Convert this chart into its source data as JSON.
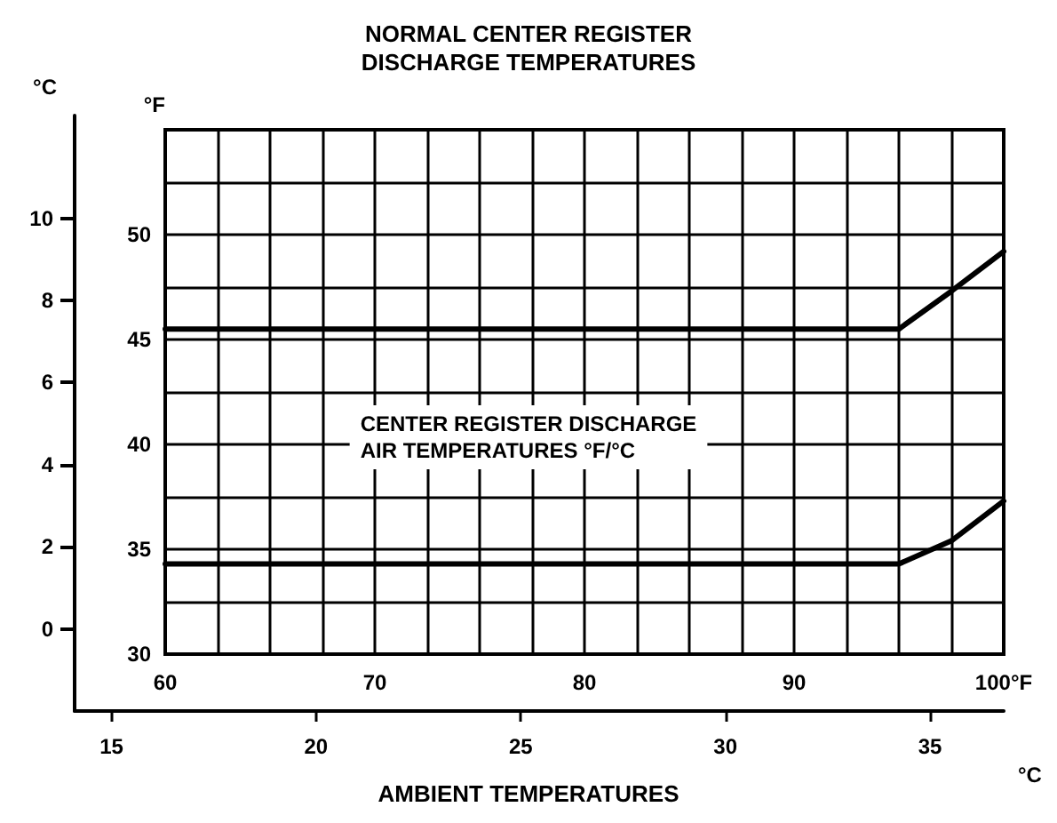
{
  "chart_data": {
    "type": "line",
    "title": "NORMAL CENTER REGISTER\nDISCHARGE TEMPERATURES",
    "xlabel": "AMBIENT TEMPERATURES",
    "ylabel": "°F",
    "y2label": "°C",
    "x2label": "°C",
    "annotations": [
      "CENTER REGISTER DISCHARGE\nAIR TEMPERATURES °F/°C"
    ],
    "x": [
      60,
      95,
      97.5,
      100
    ],
    "series": [
      {
        "color": "#000000",
        "values": [
          45.5,
          45.5,
          47.3,
          49.2
        ]
      },
      {
        "color": "#000000",
        "values": [
          34.3,
          34.3,
          35.4,
          37.3
        ]
      }
    ],
    "xlim": [
      60,
      100
    ],
    "xticks": [
      60,
      {
        "value": 62.5,
        "label": null
      },
      {
        "value": 65,
        "label": null
      },
      {
        "value": 67.5,
        "label": null
      },
      70,
      {
        "value": 72.5,
        "label": null
      },
      {
        "value": 75,
        "label": null
      },
      {
        "value": 77.5,
        "label": null
      },
      80,
      {
        "value": 82.5,
        "label": null
      },
      {
        "value": 85,
        "label": null
      },
      {
        "value": 87.5,
        "label": null
      },
      90,
      {
        "value": 92.5,
        "label": null
      },
      {
        "value": 95,
        "label": null
      },
      {
        "value": 97.5,
        "label": null
      },
      {
        "value": 100,
        "label": "100°F"
      }
    ],
    "ylim": [
      30,
      55
    ],
    "yticks": [
      30,
      {
        "value": 32.5,
        "label": null
      },
      35,
      {
        "value": 37.5,
        "label": null
      },
      40,
      {
        "value": 42.5,
        "label": null
      },
      45,
      {
        "value": 47.5,
        "label": null
      },
      50,
      {
        "value": 52.5,
        "label": null
      },
      {
        "value": 55,
        "label": null
      }
    ],
    "y2lim": [
      -2,
      12.5
    ],
    "y2ticks": [
      0,
      2,
      4,
      6,
      8,
      10
    ],
    "x2lim": [
      14.1,
      36.8
    ],
    "x2ticks": [
      15,
      20,
      25,
      30,
      35
    ],
    "grid": true,
    "marker": "none",
    "line_style": "solid"
  }
}
